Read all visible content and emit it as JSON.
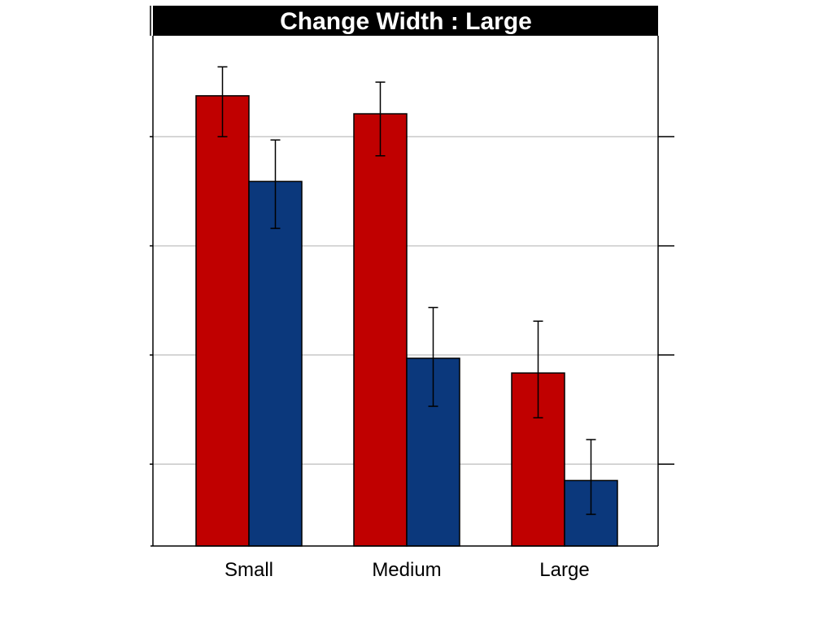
{
  "chart_data": {
    "type": "bar",
    "title": "Change Width : Large",
    "categories": [
      "Small",
      "Medium",
      "Large"
    ],
    "series": [
      {
        "values": [
          8.25,
          7.92,
          3.17
        ],
        "err_low": [
          7.5,
          7.15,
          2.35
        ],
        "err_high": [
          8.78,
          8.5,
          4.12
        ],
        "color": "#c00000"
      },
      {
        "values": [
          6.68,
          3.44,
          1.2
        ],
        "err_low": [
          5.82,
          2.56,
          0.58
        ],
        "err_high": [
          7.44,
          4.37,
          1.95
        ],
        "color": "#0b387c"
      }
    ],
    "ylim": [
      0,
      9.35
    ],
    "yticks": [
      1.5,
      3.5,
      5.5,
      7.5
    ],
    "grid": true,
    "legend": "none"
  }
}
